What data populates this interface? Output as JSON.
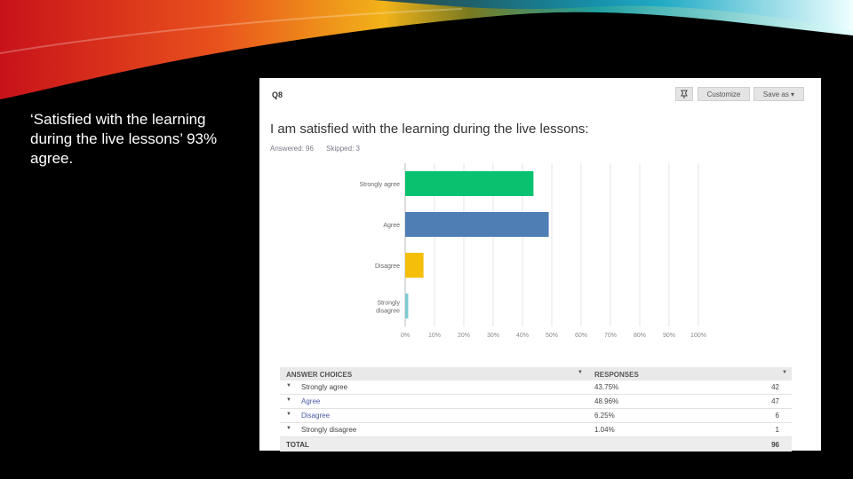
{
  "slide": {
    "caption": "‘Satisfied with the learning during the live lessons’ 93% agree."
  },
  "panel": {
    "question_number": "Q8",
    "question_title": "I am satisfied with the learning during the live lessons:",
    "answered": "Answered: 96",
    "skipped": "Skipped: 3",
    "customize_label": "Customize",
    "save_as_label": "Save as ▾",
    "pin_icon": "pin-icon"
  },
  "chart_data": {
    "type": "bar",
    "orientation": "horizontal",
    "categories": [
      "Strongly agree",
      "Agree",
      "Disagree",
      "Strongly disagree"
    ],
    "values": [
      43.75,
      48.96,
      6.25,
      1.04
    ],
    "colors": [
      "#08c270",
      "#4f7eb5",
      "#f5be0b",
      "#7ecad1"
    ],
    "xlim": [
      0,
      100
    ],
    "xticks": [
      "0%",
      "10%",
      "20%",
      "30%",
      "40%",
      "50%",
      "60%",
      "70%",
      "80%",
      "90%",
      "100%"
    ],
    "grid": true
  },
  "table": {
    "header_choices": "ANSWER CHOICES",
    "header_responses": "RESPONSES",
    "rows": [
      {
        "choice": "Strongly agree",
        "percent": "43.75%",
        "count": "42"
      },
      {
        "choice": "Agree",
        "percent": "48.96%",
        "count": "47"
      },
      {
        "choice": "Disagree",
        "percent": "6.25%",
        "count": "6"
      },
      {
        "choice": "Strongly disagree",
        "percent": "1.04%",
        "count": "1"
      }
    ],
    "total_label": "TOTAL",
    "total_value": "96"
  }
}
